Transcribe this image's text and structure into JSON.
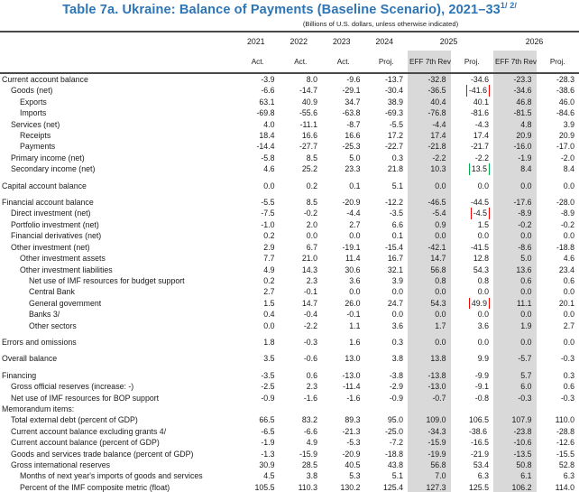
{
  "title": {
    "text": "Table 7a. Ukraine: Balance of Payments (Baseline Scenario), 2021–33",
    "superscript": "1/ 2/"
  },
  "subtitle": "(Billions of U.S. dollars, unless otherwise indicated)",
  "colors": {
    "title_blue": "#2E75B6",
    "column_shade_gray": "#D9D9D9",
    "highlight_red": "#FF0000",
    "highlight_green": "#00B050",
    "rule_gray": "#4a4a4a"
  },
  "header": {
    "years": [
      {
        "label": "2021",
        "span": 1
      },
      {
        "label": "2022",
        "span": 1
      },
      {
        "label": "2023",
        "span": 1
      },
      {
        "label": "2024",
        "span": 1
      },
      {
        "label": "2025",
        "span": 2
      },
      {
        "label": "2026",
        "span": 2
      }
    ],
    "subheaders": [
      {
        "label": "Act.",
        "shaded": false
      },
      {
        "label": "Act.",
        "shaded": false
      },
      {
        "label": "Act.",
        "shaded": false
      },
      {
        "label": "Proj.",
        "shaded": false
      },
      {
        "label": "EFF 7th Review",
        "shaded": true
      },
      {
        "label": "Proj.",
        "shaded": false
      },
      {
        "label": "EFF 7th Review",
        "shaded": true
      },
      {
        "label": "Proj.",
        "shaded": false
      }
    ],
    "shaded_column_indexes": [
      4,
      6
    ]
  },
  "table": {
    "rows": [
      {
        "label": "Current account balance",
        "indent": 0,
        "gap": false,
        "values": [
          "-3.9",
          "8.0",
          "-9.6",
          "-13.7",
          "-32.8",
          "-34.6",
          "-23.3",
          "-28.3"
        ]
      },
      {
        "label": "Goods (net)",
        "indent": 1,
        "gap": false,
        "values": [
          "-6.6",
          "-14.7",
          "-29.1",
          "-30.4",
          "-36.5",
          "-41.6",
          "-34.6",
          "-38.6"
        ],
        "highlights": {
          "5": "red-box"
        }
      },
      {
        "label": "Exports",
        "indent": 2,
        "gap": false,
        "values": [
          "63.1",
          "40.9",
          "34.7",
          "38.9",
          "40.4",
          "40.1",
          "46.8",
          "46.0"
        ]
      },
      {
        "label": "Imports",
        "indent": 2,
        "gap": false,
        "values": [
          "-69.8",
          "-55.6",
          "-63.8",
          "-69.3",
          "-76.8",
          "-81.6",
          "-81.5",
          "-84.6"
        ]
      },
      {
        "label": "Services (net)",
        "indent": 1,
        "gap": false,
        "values": [
          "4.0",
          "-11.1",
          "-8.7",
          "-5.5",
          "-4.4",
          "-4.3",
          "4.8",
          "3.9"
        ]
      },
      {
        "label": "Receipts",
        "indent": 2,
        "gap": false,
        "values": [
          "18.4",
          "16.6",
          "16.6",
          "17.2",
          "17.4",
          "17.4",
          "20.9",
          "20.9"
        ]
      },
      {
        "label": "Payments",
        "indent": 2,
        "gap": false,
        "values": [
          "-14.4",
          "-27.7",
          "-25.3",
          "-22.7",
          "-21.8",
          "-21.7",
          "-16.0",
          "-17.0"
        ]
      },
      {
        "label": "Primary income (net)",
        "indent": 1,
        "gap": false,
        "values": [
          "-5.8",
          "8.5",
          "5.0",
          "0.3",
          "-2.2",
          "-2.2",
          "-1.9",
          "-2.0"
        ]
      },
      {
        "label": "Secondary income (net)",
        "indent": 1,
        "gap": false,
        "values": [
          "4.6",
          "25.2",
          "23.3",
          "21.8",
          "10.3",
          "13.5",
          "8.4",
          "8.4"
        ],
        "highlights": {
          "5": "green-box"
        }
      },
      {
        "label": "Capital account balance",
        "indent": 0,
        "gap": true,
        "values": [
          "0.0",
          "0.2",
          "0.1",
          "5.1",
          "0.0",
          "0.0",
          "0.0",
          "0.0"
        ]
      },
      {
        "label": "Financial account balance",
        "indent": 0,
        "gap": true,
        "values": [
          "-5.5",
          "8.5",
          "-20.9",
          "-12.2",
          "-46.5",
          "-44.5",
          "-17.6",
          "-28.0"
        ]
      },
      {
        "label": "Direct investment (net)",
        "indent": 1,
        "gap": false,
        "values": [
          "-7.5",
          "-0.2",
          "-4.4",
          "-3.5",
          "-5.4",
          "-4.5",
          "-8.9",
          "-8.9"
        ],
        "highlights": {
          "5": "red-box"
        }
      },
      {
        "label": "Portfolio investment (net)",
        "indent": 1,
        "gap": false,
        "values": [
          "-1.0",
          "2.0",
          "2.7",
          "6.6",
          "0.9",
          "1.5",
          "-0.2",
          "-0.2"
        ]
      },
      {
        "label": "Financial derivatives (net)",
        "indent": 1,
        "gap": false,
        "values": [
          "0.2",
          "0.0",
          "0.0",
          "0.1",
          "0.0",
          "0.0",
          "0.0",
          "0.0"
        ]
      },
      {
        "label": "Other investment (net)",
        "indent": 1,
        "gap": false,
        "values": [
          "2.9",
          "6.7",
          "-19.1",
          "-15.4",
          "-42.1",
          "-41.5",
          "-8.6",
          "-18.8"
        ]
      },
      {
        "label": "Other investment assets",
        "indent": 2,
        "gap": false,
        "values": [
          "7.7",
          "21.0",
          "11.4",
          "16.7",
          "14.7",
          "12.8",
          "5.0",
          "4.6"
        ]
      },
      {
        "label": "Other investment liabilities",
        "indent": 2,
        "gap": false,
        "values": [
          "4.9",
          "14.3",
          "30.6",
          "32.1",
          "56.8",
          "54.3",
          "13.6",
          "23.4"
        ]
      },
      {
        "label": "Net use of IMF resources for budget support",
        "indent": 3,
        "gap": false,
        "values": [
          "0.2",
          "2.3",
          "3.6",
          "3.9",
          "0.8",
          "0.8",
          "0.6",
          "0.6"
        ]
      },
      {
        "label": "Central Bank",
        "indent": 3,
        "gap": false,
        "values": [
          "2.7",
          "-0.1",
          "0.0",
          "0.0",
          "0.0",
          "0.0",
          "0.0",
          "0.0"
        ]
      },
      {
        "label": "General government",
        "indent": 3,
        "gap": false,
        "values": [
          "1.5",
          "14.7",
          "26.0",
          "24.7",
          "54.3",
          "49.9",
          "11.1",
          "20.1"
        ],
        "highlights": {
          "5": "red-box"
        }
      },
      {
        "label": "Banks 3/",
        "indent": 3,
        "gap": false,
        "values": [
          "0.4",
          "-0.4",
          "-0.1",
          "0.0",
          "0.0",
          "0.0",
          "0.0",
          "0.0"
        ]
      },
      {
        "label": "Other sectors",
        "indent": 3,
        "gap": false,
        "values": [
          "0.0",
          "-2.2",
          "1.1",
          "3.6",
          "1.7",
          "3.6",
          "1.9",
          "2.7"
        ]
      },
      {
        "label": "Errors and omissions",
        "indent": 0,
        "gap": true,
        "values": [
          "1.8",
          "-0.3",
          "1.6",
          "0.3",
          "0.0",
          "0.0",
          "0.0",
          "0.0"
        ]
      },
      {
        "label": "Overall balance",
        "indent": 0,
        "gap": true,
        "values": [
          "3.5",
          "-0.6",
          "13.0",
          "3.8",
          "13.8",
          "9.9",
          "-5.7",
          "-0.3"
        ]
      },
      {
        "label": "Financing",
        "indent": 0,
        "gap": true,
        "values": [
          "-3.5",
          "0.6",
          "-13.0",
          "-3.8",
          "-13.8",
          "-9.9",
          "5.7",
          "0.3"
        ]
      },
      {
        "label": "Gross official reserves (increase: -)",
        "indent": 1,
        "gap": false,
        "values": [
          "-2.5",
          "2.3",
          "-11.4",
          "-2.9",
          "-13.0",
          "-9.1",
          "6.0",
          "0.6"
        ]
      },
      {
        "label": "Net use of IMF resources for BOP support",
        "indent": 1,
        "gap": false,
        "values": [
          "-0.9",
          "-1.6",
          "-1.6",
          "-0.9",
          "-0.7",
          "-0.8",
          "-0.3",
          "-0.3"
        ]
      },
      {
        "label": "Memorandum items:",
        "indent": 0,
        "gap": false,
        "values": [
          "",
          "",
          "",
          "",
          "",
          "",
          "",
          ""
        ]
      },
      {
        "label": "Total external debt (percent of GDP)",
        "indent": 1,
        "gap": false,
        "values": [
          "66.5",
          "83.2",
          "89.3",
          "95.0",
          "109.0",
          "106.5",
          "107.9",
          "110.0"
        ]
      },
      {
        "label": "Current account balance excluding grants 4/",
        "indent": 1,
        "gap": false,
        "values": [
          "-6.5",
          "-6.6",
          "-21.3",
          "-25.0",
          "-34.3",
          "-38.6",
          "-23.8",
          "-28.8"
        ],
        "highlights": {
          "5": "green-underline"
        }
      },
      {
        "label": "Current account balance (percent of GDP)",
        "indent": 1,
        "gap": false,
        "values": [
          "-1.9",
          "4.9",
          "-5.3",
          "-7.2",
          "-15.9",
          "-16.5",
          "-10.6",
          "-12.6"
        ]
      },
      {
        "label": "Goods and services trade balance (percent of GDP)",
        "indent": 1,
        "gap": false,
        "values": [
          "-1.3",
          "-15.9",
          "-20.9",
          "-18.8",
          "-19.9",
          "-21.9",
          "-13.5",
          "-15.5"
        ]
      },
      {
        "label": "Gross international reserves",
        "indent": 1,
        "gap": false,
        "values": [
          "30.9",
          "28.5",
          "40.5",
          "43.8",
          "56.8",
          "53.4",
          "50.8",
          "52.8"
        ]
      },
      {
        "label": "Months of next year's imports of goods and services",
        "indent": 2,
        "gap": false,
        "values": [
          "4.5",
          "3.8",
          "5.3",
          "5.1",
          "7.0",
          "6.3",
          "6.1",
          "6.3"
        ]
      },
      {
        "label": "Percent of the IMF composite metric (float)",
        "indent": 2,
        "gap": false,
        "values": [
          "105.5",
          "110.3",
          "130.2",
          "125.4",
          "127.3",
          "125.5",
          "106.2",
          "114.0"
        ]
      }
    ]
  }
}
